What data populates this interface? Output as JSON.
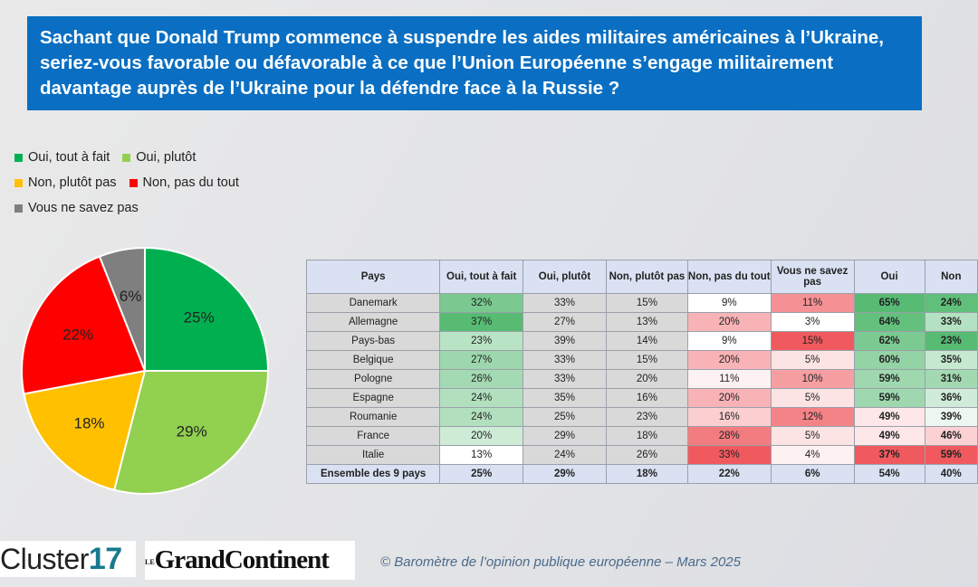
{
  "title": "Sachant que Donald Trump commence à suspendre les aides militaires américaines à l’Ukraine, seriez-vous favorable ou défavorable à ce que l’Union Européenne s’engage militairement davantage auprès de l’Ukraine pour la défendre face à la Russie ?",
  "chart_data": [
    {
      "type": "pie",
      "title": "Ensemble des 9 pays",
      "legend_position": "top-left",
      "categories": [
        "Oui, tout à fait",
        "Oui, plutôt",
        "Non, plutôt pas",
        "Non, pas du tout",
        "Vous ne savez pas"
      ],
      "values": [
        25,
        29,
        18,
        22,
        6
      ],
      "labels": [
        "25%",
        "29%",
        "18%",
        "22%",
        "6%"
      ],
      "colors": [
        "#00b050",
        "#92d050",
        "#ffc000",
        "#ff0000",
        "#7f7f7f"
      ]
    },
    {
      "type": "table",
      "columns": [
        "Pays",
        "Oui, tout à fait",
        "Oui, plutôt",
        "Non, plutôt pas",
        "Non, pas du tout",
        "Vous ne savez pas",
        "Oui",
        "Non"
      ],
      "rows": [
        [
          "Danemark",
          "32%",
          "33%",
          "15%",
          "9%",
          "11%",
          "65%",
          "24%"
        ],
        [
          "Allemagne",
          "37%",
          "27%",
          "13%",
          "20%",
          "3%",
          "64%",
          "33%"
        ],
        [
          "Pays-bas",
          "23%",
          "39%",
          "14%",
          "9%",
          "15%",
          "62%",
          "23%"
        ],
        [
          "Belgique",
          "27%",
          "33%",
          "15%",
          "20%",
          "5%",
          "60%",
          "35%"
        ],
        [
          "Pologne",
          "26%",
          "33%",
          "20%",
          "11%",
          "10%",
          "59%",
          "31%"
        ],
        [
          "Espagne",
          "24%",
          "35%",
          "16%",
          "20%",
          "5%",
          "59%",
          "36%"
        ],
        [
          "Roumanie",
          "24%",
          "25%",
          "23%",
          "16%",
          "12%",
          "49%",
          "39%"
        ],
        [
          "France",
          "20%",
          "29%",
          "18%",
          "28%",
          "5%",
          "49%",
          "46%"
        ],
        [
          "Italie",
          "13%",
          "24%",
          "26%",
          "33%",
          "4%",
          "37%",
          "59%"
        ]
      ],
      "total": [
        "Ensemble des 9 pays",
        "25%",
        "29%",
        "18%",
        "22%",
        "6%",
        "54%",
        "40%"
      ]
    }
  ],
  "logos": {
    "cluster": "Cluster",
    "cluster_num": "17",
    "gc_le": "LE",
    "gc": "GrandContinent"
  },
  "footer": "© Baromètre de l’opinion publique européenne – Mars 2025"
}
